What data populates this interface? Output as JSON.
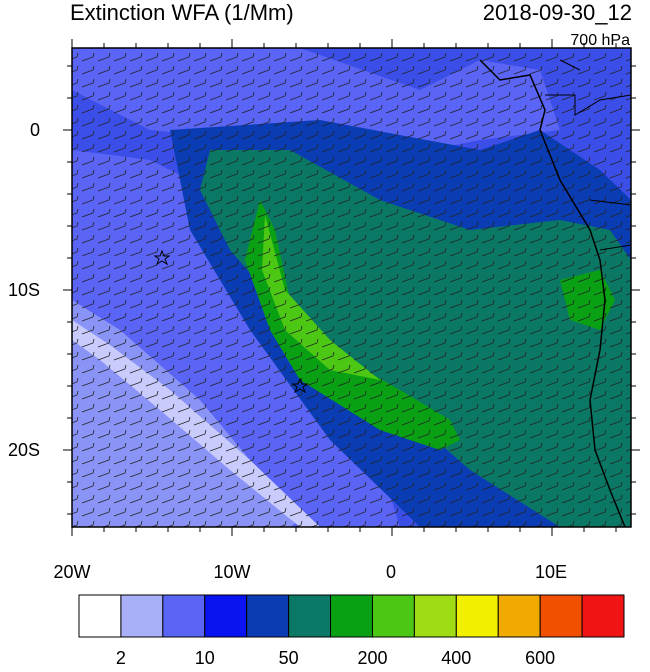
{
  "header": {
    "title": "Extinction WFA (1/Mm)",
    "date": "2018-09-30_12",
    "level": "700 hPa"
  },
  "map": {
    "x_tick_labels": [
      "20W",
      "10W",
      "0",
      "10E"
    ],
    "y_tick_labels": [
      "0",
      "10S",
      "20S"
    ]
  },
  "colorbar": {
    "colors": [
      "#ffffff",
      "#aab0f8",
      "#5a64f5",
      "#0a14f0",
      "#0a3cb4",
      "#0a7864",
      "#0aa014",
      "#4cc814",
      "#a0dc14",
      "#f0f000",
      "#f0aa00",
      "#f05000",
      "#f01414"
    ],
    "labels": [
      "2",
      "10",
      "50",
      "200",
      "400",
      "600"
    ]
  }
}
